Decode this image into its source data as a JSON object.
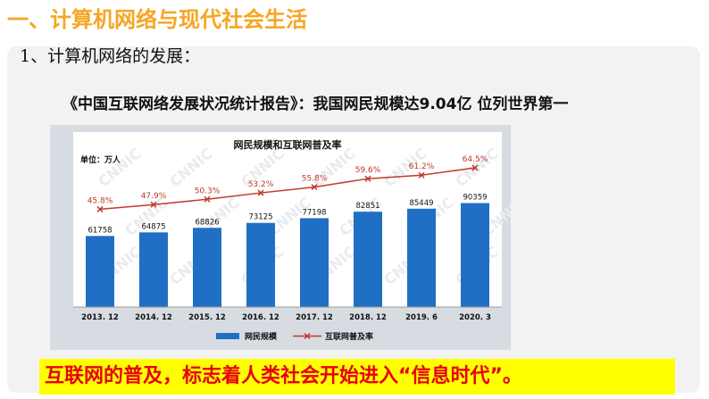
{
  "heading": "一、计算机网络与现代社会生活",
  "subheading": "1、计算机网络的发展：",
  "report_line": "《中国互联网络发展状况统计报告》：我国网民规模达9.04亿 位列世界第一",
  "conclusion": "互联网的普及，标志着人类社会开始进入“信息时代”。",
  "colors": {
    "heading": "#f5a623",
    "bar": "#1f6fc4",
    "line": "#c0392b",
    "conclusion_bg": "#ffff00",
    "conclusion_text": "#e60012"
  },
  "chart_data": {
    "type": "bar",
    "title": "网民规模和互联网普及率",
    "unit_label": "单位：万人",
    "watermark": "CNNIC",
    "categories": [
      "2013. 12",
      "2014. 12",
      "2015. 12",
      "2016. 12",
      "2017. 12",
      "2018. 12",
      "2019. 6",
      "2020. 3"
    ],
    "series": [
      {
        "name": "网民规模",
        "type": "bar",
        "values": [
          61758,
          64875,
          68826,
          73125,
          77198,
          82851,
          85449,
          90359
        ],
        "labels": [
          "61758",
          "64875",
          "68826",
          "73125",
          "77198",
          "82851",
          "85449",
          "90359"
        ]
      },
      {
        "name": "互联网普及率",
        "type": "line",
        "values": [
          45.8,
          47.9,
          50.3,
          53.2,
          55.8,
          59.6,
          61.2,
          64.5
        ],
        "labels": [
          "45.8%",
          "47.9%",
          "50.3%",
          "53.2%",
          "55.8%",
          "59.6%",
          "61.2%",
          "64.5%"
        ]
      }
    ],
    "legend": "bottom",
    "grid": false
  }
}
